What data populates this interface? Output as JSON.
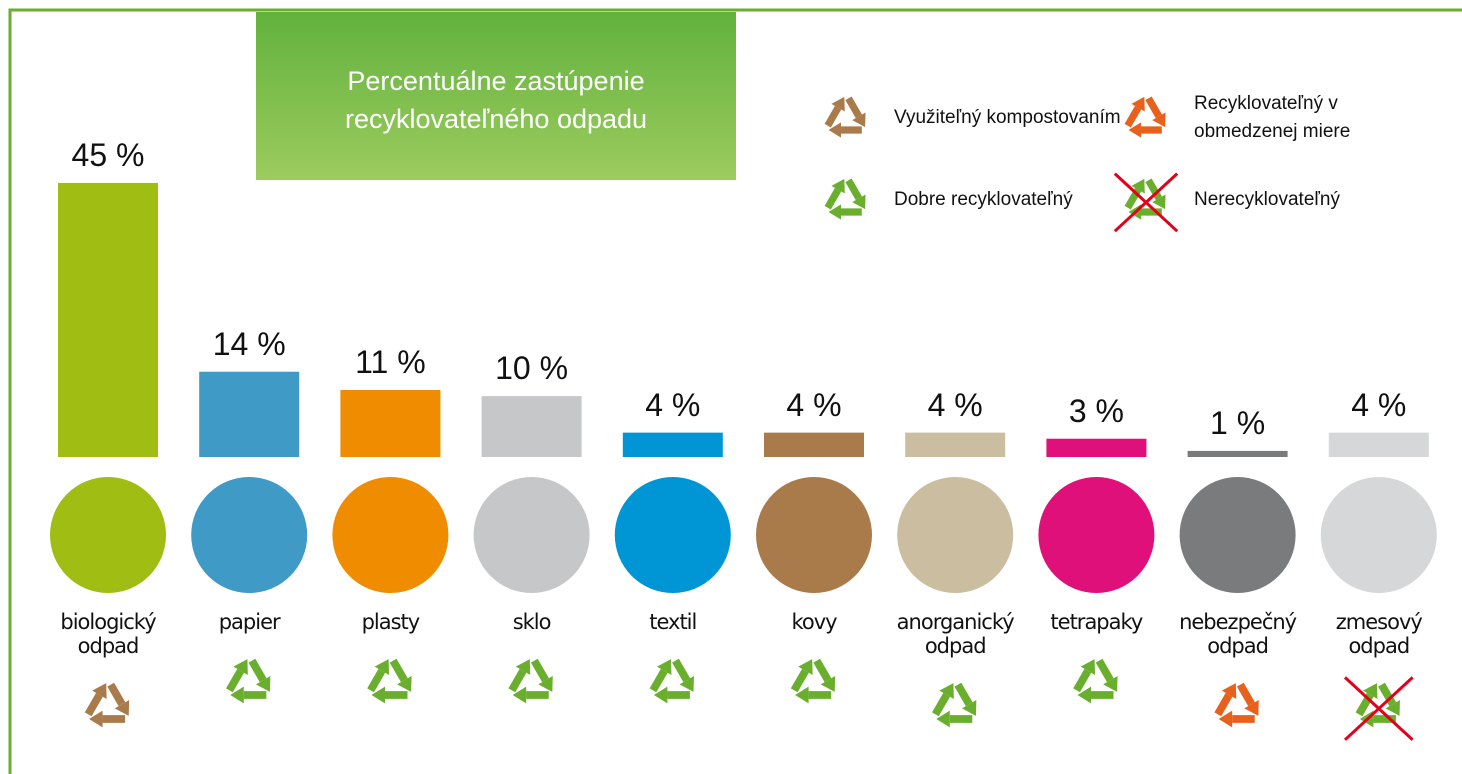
{
  "chart_data": {
    "type": "bar",
    "title": "Percentuálne zastúpenie recyklovateľného odpadu",
    "categories": [
      "biologický odpad",
      "papier",
      "plasty",
      "sklo",
      "textil",
      "kovy",
      "anorganický odpad",
      "tetrapaky",
      "nebezpečný odpad",
      "zmesový odpad"
    ],
    "values": [
      45,
      14,
      11,
      10,
      4,
      4,
      4,
      3,
      1,
      4
    ],
    "value_labels": [
      "45 %",
      "14 %",
      "11 %",
      "10 %",
      "4 %",
      "4 %",
      "4 %",
      "3 %",
      "1 %",
      "4 %"
    ],
    "colors": [
      "#9fbd13",
      "#3f9ac6",
      "#f08c00",
      "#c6c7c9",
      "#0096d6",
      "#a97a4a",
      "#cbbda0",
      "#e0107a",
      "#7a7b7c",
      "#d6d7d8"
    ],
    "recycle_class": [
      0,
      2,
      2,
      2,
      2,
      2,
      2,
      2,
      1,
      3
    ],
    "legend": [
      {
        "label": "Využiteľný kompostovaním",
        "color": "#a97a4a",
        "crossed": false
      },
      {
        "label": "Recyklovateľný v obmedzenej miere",
        "color": "#e8611c",
        "crossed": false
      },
      {
        "label": "Dobre recyklovateľný",
        "color": "#6aae2e",
        "crossed": false
      },
      {
        "label": "Nerecyklovateľný",
        "color": "#6aae2e",
        "crossed": true
      }
    ]
  }
}
